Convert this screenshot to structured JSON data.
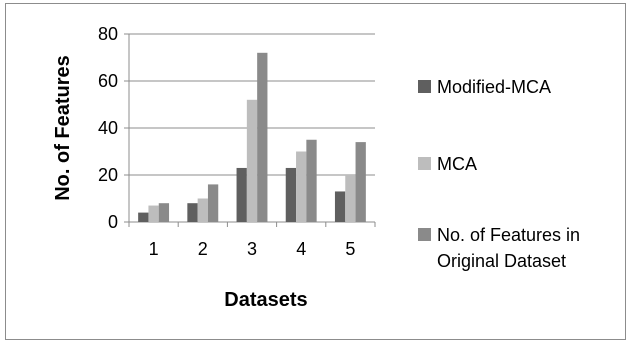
{
  "chart_data": {
    "type": "bar",
    "title": "",
    "xlabel": "Datasets",
    "ylabel": "No. of Features",
    "categories": [
      "1",
      "2",
      "3",
      "4",
      "5"
    ],
    "ylim": [
      0,
      80
    ],
    "yticks": [
      0,
      20,
      40,
      60,
      80
    ],
    "grid": true,
    "legend_position": "right",
    "series": [
      {
        "name": "Modified-MCA",
        "color": "#5f5f5f",
        "values": [
          4,
          8,
          23,
          23,
          13
        ]
      },
      {
        "name": "MCA",
        "color": "#bdbdbd",
        "values": [
          7,
          10,
          52,
          30,
          20
        ]
      },
      {
        "name": "No. of Features in Original Dataset",
        "color": "#8a8a8a",
        "values": [
          8,
          16,
          72,
          35,
          34
        ]
      }
    ]
  }
}
